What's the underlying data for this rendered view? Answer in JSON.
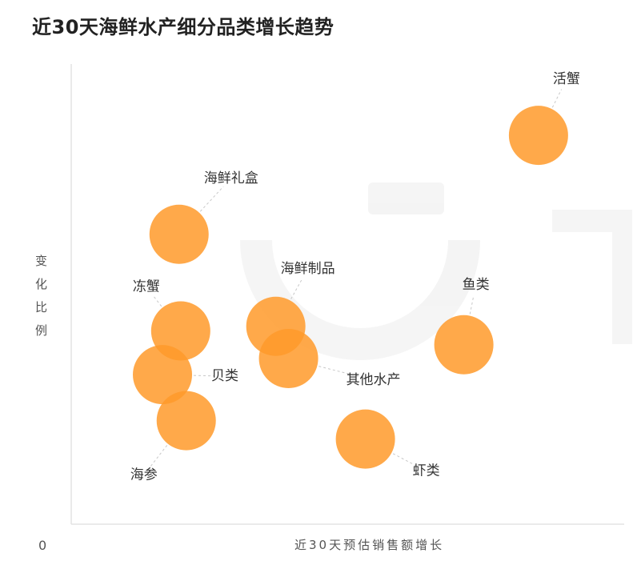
{
  "chart_data": {
    "type": "scatter",
    "title": "近30天海鲜水产细分品类增长趋势",
    "xlabel": "近30天预估销售额增长",
    "ylabel": "变化比例",
    "origin_label": "0",
    "bubble_color": "#FF9A2A",
    "bubble_opacity": 0.85,
    "xlim": [
      0,
      100
    ],
    "ylim": [
      0,
      100
    ],
    "points": [
      {
        "name": "活蟹",
        "x": 84.5,
        "y": 84.5
      },
      {
        "name": "海鲜礼盒",
        "x": 19.5,
        "y": 63.0
      },
      {
        "name": "海鲜制品",
        "x": 37.0,
        "y": 43.0
      },
      {
        "name": "冻蟹",
        "x": 19.8,
        "y": 42.0
      },
      {
        "name": "鱼类",
        "x": 71.0,
        "y": 39.0
      },
      {
        "name": "其他水产",
        "x": 39.3,
        "y": 36.0
      },
      {
        "name": "贝类",
        "x": 16.5,
        "y": 32.5
      },
      {
        "name": "海参",
        "x": 20.8,
        "y": 22.5
      },
      {
        "name": "虾类",
        "x": 53.2,
        "y": 18.5
      }
    ]
  }
}
